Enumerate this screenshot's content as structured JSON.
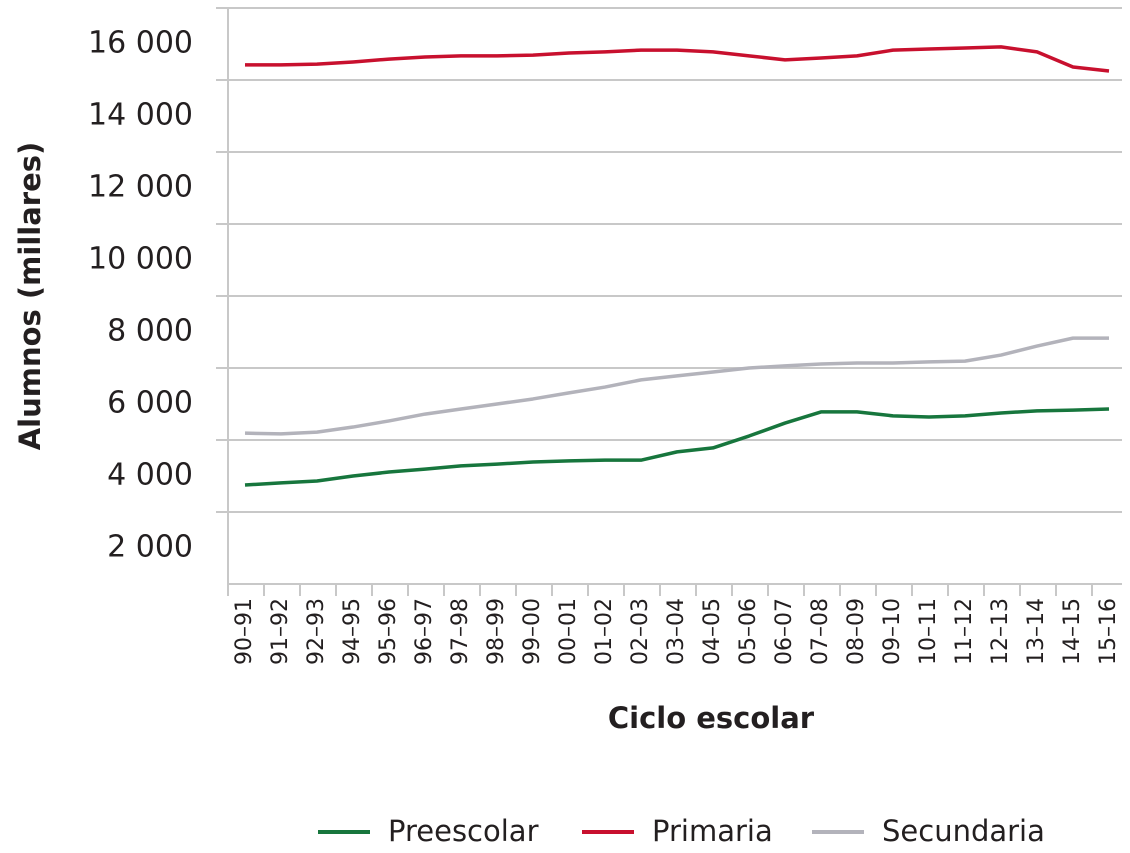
{
  "chart_data": {
    "type": "line",
    "y_label": "Alumnos (millares)",
    "x_label": "Ciclo escolar",
    "categories": [
      "90–91",
      "91–92",
      "92–93",
      "94–95",
      "95–96",
      "96–97",
      "97–98",
      "98–99",
      "99–00",
      "00–01",
      "01–02",
      "02–03",
      "03–04",
      "04–05",
      "05–06",
      "06–07",
      "07–08",
      "08–09",
      "09–10",
      "10–11",
      "11–12",
      "12–13",
      "13–14",
      "14–15",
      "15–16"
    ],
    "series": [
      {
        "name": "Preescolar",
        "color": "#17763d",
        "values": [
          2750,
          2810,
          2860,
          3000,
          3110,
          3190,
          3280,
          3330,
          3390,
          3420,
          3440,
          3440,
          3670,
          3780,
          4110,
          4470,
          4780,
          4780,
          4670,
          4640,
          4670,
          4750,
          4810,
          4830,
          4860
        ]
      },
      {
        "name": "Primaria",
        "color": "#c8102e",
        "values": [
          14420,
          14420,
          14440,
          14500,
          14580,
          14640,
          14670,
          14670,
          14690,
          14750,
          14780,
          14830,
          14830,
          14780,
          14670,
          14560,
          14610,
          14670,
          14830,
          14860,
          14890,
          14920,
          14780,
          14360,
          14250
        ]
      },
      {
        "name": "Secundaria",
        "color": "#b3b3bb",
        "values": [
          4190,
          4170,
          4220,
          4360,
          4530,
          4720,
          4860,
          5000,
          5140,
          5310,
          5470,
          5670,
          5780,
          5890,
          6000,
          6060,
          6110,
          6140,
          6140,
          6170,
          6190,
          6360,
          6610,
          6830,
          6830
        ]
      }
    ],
    "ylim": [
      0,
      16000
    ],
    "yticks": [
      {
        "value": 2000,
        "label": "2 000"
      },
      {
        "value": 4000,
        "label": "4 000"
      },
      {
        "value": 6000,
        "label": "6 000"
      },
      {
        "value": 8000,
        "label": "8 000"
      },
      {
        "value": 10000,
        "label": "10 000"
      },
      {
        "value": 12000,
        "label": "12 000"
      },
      {
        "value": 14000,
        "label": "14 000"
      },
      {
        "value": 16000,
        "label": "16 000"
      }
    ],
    "grid": true,
    "legend": "bottom"
  }
}
